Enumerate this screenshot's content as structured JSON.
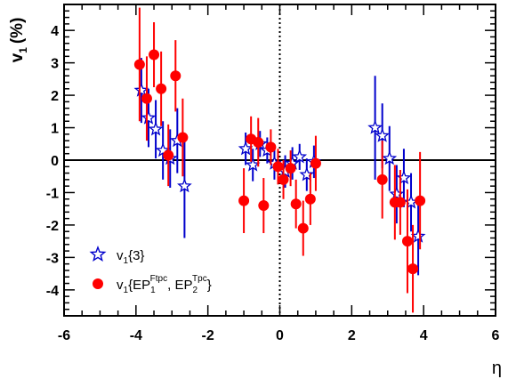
{
  "chart_data": {
    "type": "scatter",
    "xlabel": "η",
    "ylabel_main": "v",
    "ylabel_sub": "1",
    "ylabel_unit": "(%)",
    "xlim": [
      -6,
      6
    ],
    "ylim": [
      -4.8,
      4.8
    ],
    "xticks": [
      -6,
      -4,
      -2,
      0,
      2,
      4,
      6
    ],
    "yticks": [
      -4,
      -3,
      -2,
      -1,
      0,
      1,
      2,
      3,
      4
    ],
    "reference_lines": {
      "horizontal_y": 0,
      "vertical_x": 0
    },
    "legend": {
      "position": "bottom-left"
    },
    "series": [
      {
        "name": "v1{3}",
        "label_parts": {
          "main": "v",
          "sub": "1",
          "rest": "{3}"
        },
        "marker": "open-star",
        "color": "#0000cc",
        "points": [
          {
            "x": -3.85,
            "y": 2.15,
            "err": 1.0
          },
          {
            "x": -3.65,
            "y": 1.3,
            "err": 0.9
          },
          {
            "x": -3.45,
            "y": 0.95,
            "err": 0.9
          },
          {
            "x": -3.25,
            "y": 0.3,
            "err": 0.9
          },
          {
            "x": -3.05,
            "y": 0.05,
            "err": 0.9
          },
          {
            "x": -2.85,
            "y": 0.6,
            "err": 1.0
          },
          {
            "x": -2.65,
            "y": -0.8,
            "err": 1.6
          },
          {
            "x": -0.95,
            "y": 0.35,
            "err": 0.5
          },
          {
            "x": -0.75,
            "y": -0.15,
            "err": 0.5
          },
          {
            "x": -0.55,
            "y": 0.5,
            "err": 0.4
          },
          {
            "x": -0.35,
            "y": 0.3,
            "err": 0.4
          },
          {
            "x": -0.15,
            "y": -0.1,
            "err": 0.5
          },
          {
            "x": 0.15,
            "y": -0.35,
            "err": 0.5
          },
          {
            "x": 0.35,
            "y": -0.1,
            "err": 0.5
          },
          {
            "x": 0.55,
            "y": 0.1,
            "err": 0.4
          },
          {
            "x": 0.75,
            "y": -0.45,
            "err": 0.5
          },
          {
            "x": 0.95,
            "y": -0.05,
            "err": 0.5
          },
          {
            "x": 2.65,
            "y": 1.0,
            "err": 1.6
          },
          {
            "x": 2.85,
            "y": 0.75,
            "err": 1.0
          },
          {
            "x": 3.05,
            "y": 0.05,
            "err": 1.0
          },
          {
            "x": 3.25,
            "y": -1.05,
            "err": 0.9
          },
          {
            "x": 3.45,
            "y": -0.55,
            "err": 0.9
          },
          {
            "x": 3.65,
            "y": -1.3,
            "err": 0.9
          },
          {
            "x": 3.85,
            "y": -2.35,
            "err": 1.2
          }
        ]
      },
      {
        "name": "v1{EP1Ftpc, EP2Tpc}",
        "label_parts": {
          "main": "v",
          "sub": "1",
          "open": "{EP",
          "sub1": "1",
          "sup1": "Ftpc",
          "mid": ", EP",
          "sub2": "2",
          "sup2": "Tpc",
          "close": "}"
        },
        "marker": "filled-circle",
        "color": "#ff0000",
        "points": [
          {
            "x": -3.9,
            "y": 2.95,
            "err": 1.75
          },
          {
            "x": -3.7,
            "y": 1.9,
            "err": 1.3
          },
          {
            "x": -3.5,
            "y": 3.25,
            "err": 1.0
          },
          {
            "x": -3.3,
            "y": 2.2,
            "err": 1.15
          },
          {
            "x": -3.1,
            "y": 0.15,
            "err": 0.95
          },
          {
            "x": -2.9,
            "y": 2.6,
            "err": 1.1
          },
          {
            "x": -2.7,
            "y": 0.7,
            "err": 1.2
          },
          {
            "x": -1.0,
            "y": -1.25,
            "err": 1.0
          },
          {
            "x": -0.8,
            "y": 0.65,
            "err": 0.7
          },
          {
            "x": -0.6,
            "y": 0.55,
            "err": 0.75
          },
          {
            "x": -0.45,
            "y": -1.4,
            "err": 0.85
          },
          {
            "x": -0.25,
            "y": 0.4,
            "err": 0.55
          },
          {
            "x": -0.05,
            "y": -0.2,
            "err": 0.55
          },
          {
            "x": 0.1,
            "y": -0.6,
            "err": 0.6
          },
          {
            "x": 0.3,
            "y": -0.25,
            "err": 0.55
          },
          {
            "x": 0.45,
            "y": -1.35,
            "err": 0.75
          },
          {
            "x": 0.65,
            "y": -2.1,
            "err": 0.85
          },
          {
            "x": 0.85,
            "y": -1.2,
            "err": 0.8
          },
          {
            "x": 1.0,
            "y": -0.1,
            "err": 0.85
          },
          {
            "x": 2.85,
            "y": -0.6,
            "err": 1.2
          },
          {
            "x": 3.2,
            "y": -1.3,
            "err": 1.15
          },
          {
            "x": 3.35,
            "y": -1.3,
            "err": 1.0
          },
          {
            "x": 3.55,
            "y": -2.5,
            "err": 1.6
          },
          {
            "x": 3.7,
            "y": -3.35,
            "err": 1.35
          },
          {
            "x": 3.9,
            "y": -1.25,
            "err": 1.5
          }
        ]
      }
    ]
  }
}
